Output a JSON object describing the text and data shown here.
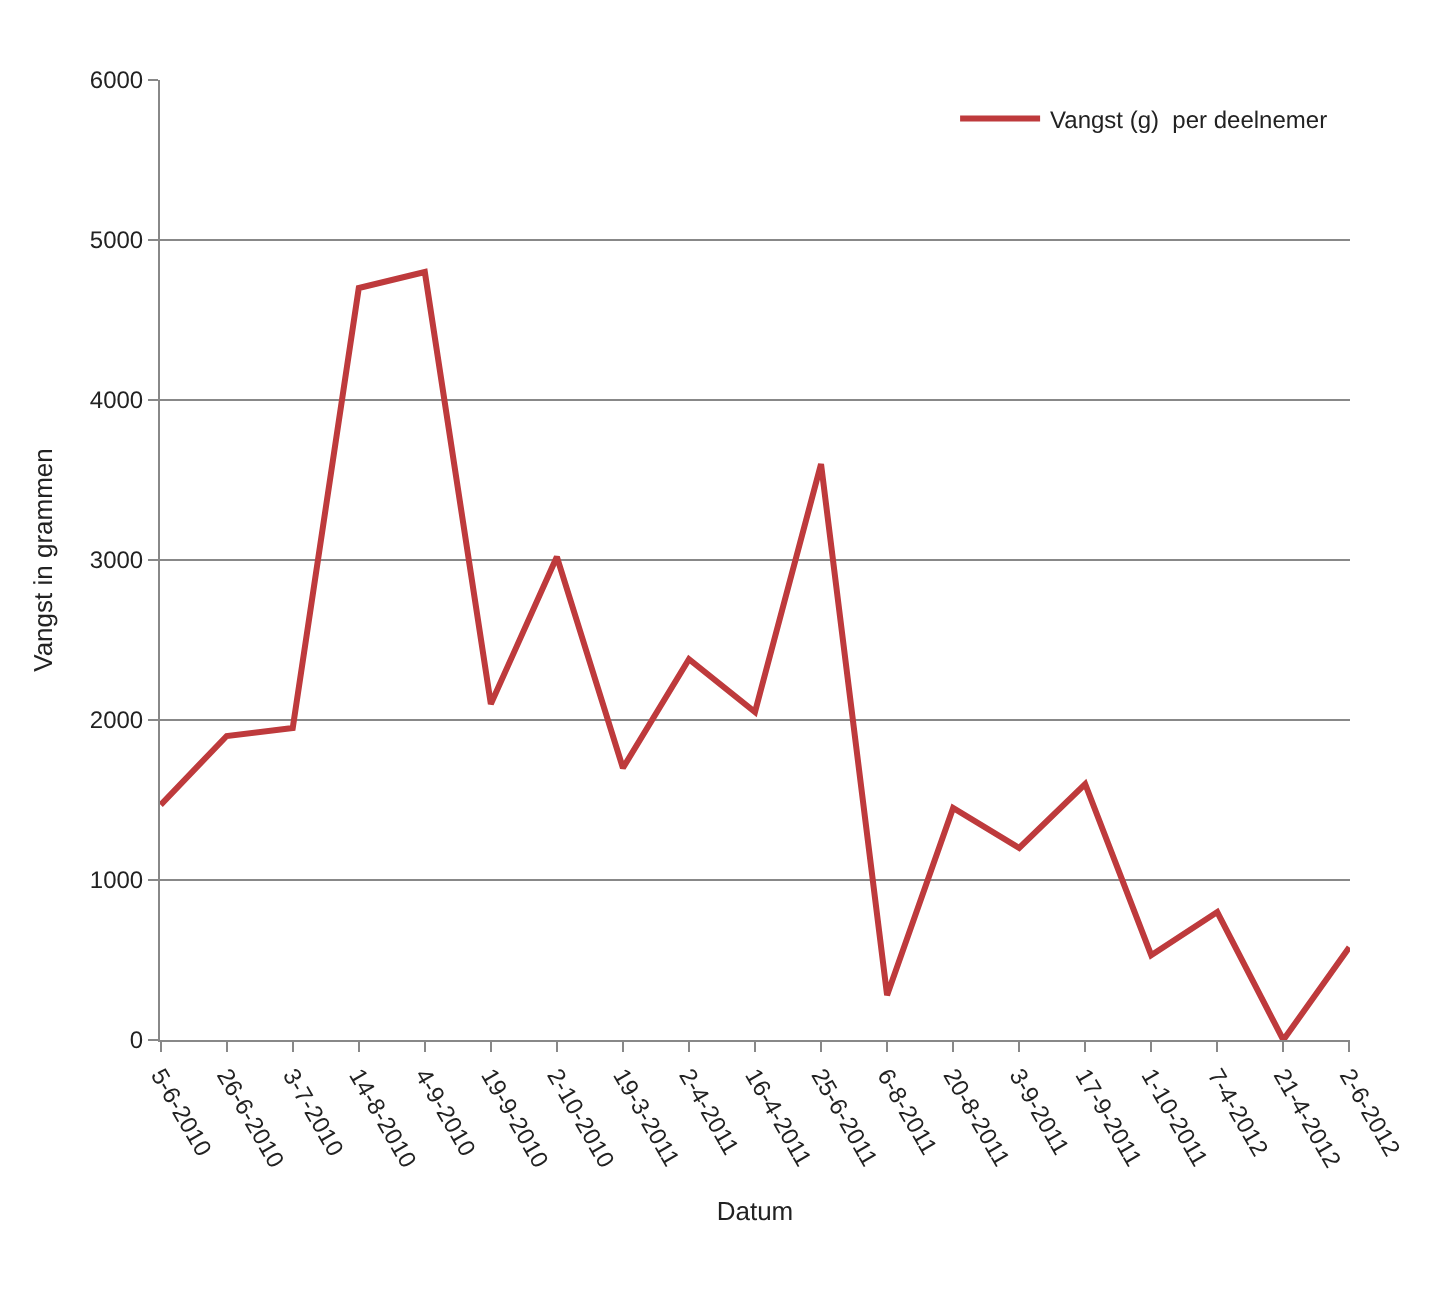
{
  "chart_data": {
    "type": "line",
    "xlabel": "Datum",
    "ylabel": "Vangst in grammen",
    "categories": [
      "5-6-2010",
      "26-6-2010",
      "3-7-2010",
      "14-8-2010",
      "4-9-2010",
      "19-9-2010",
      "2-10-2010",
      "19-3-2011",
      "2-4-2011",
      "16-4-2011",
      "25-6-2011",
      "6-8-2011",
      "20-8-2011",
      "3-9-2011",
      "17-9-2011",
      "1-10-2011",
      "7-4-2012",
      "21-4-2012",
      "2-6-2012"
    ],
    "series": [
      {
        "name": "Vangst (g)  per deelnemer",
        "color": "#be3a3c",
        "values": [
          1470,
          1900,
          1950,
          4700,
          4800,
          2100,
          3020,
          1700,
          2380,
          2050,
          3600,
          280,
          1450,
          1200,
          1600,
          530,
          800,
          0,
          580
        ]
      }
    ],
    "ylim": [
      0,
      6000
    ],
    "yticks": [
      0,
      1000,
      2000,
      3000,
      4000,
      5000,
      6000
    ],
    "grid": "y",
    "legend": "top right",
    "marker": "none",
    "line_style": "solid"
  }
}
